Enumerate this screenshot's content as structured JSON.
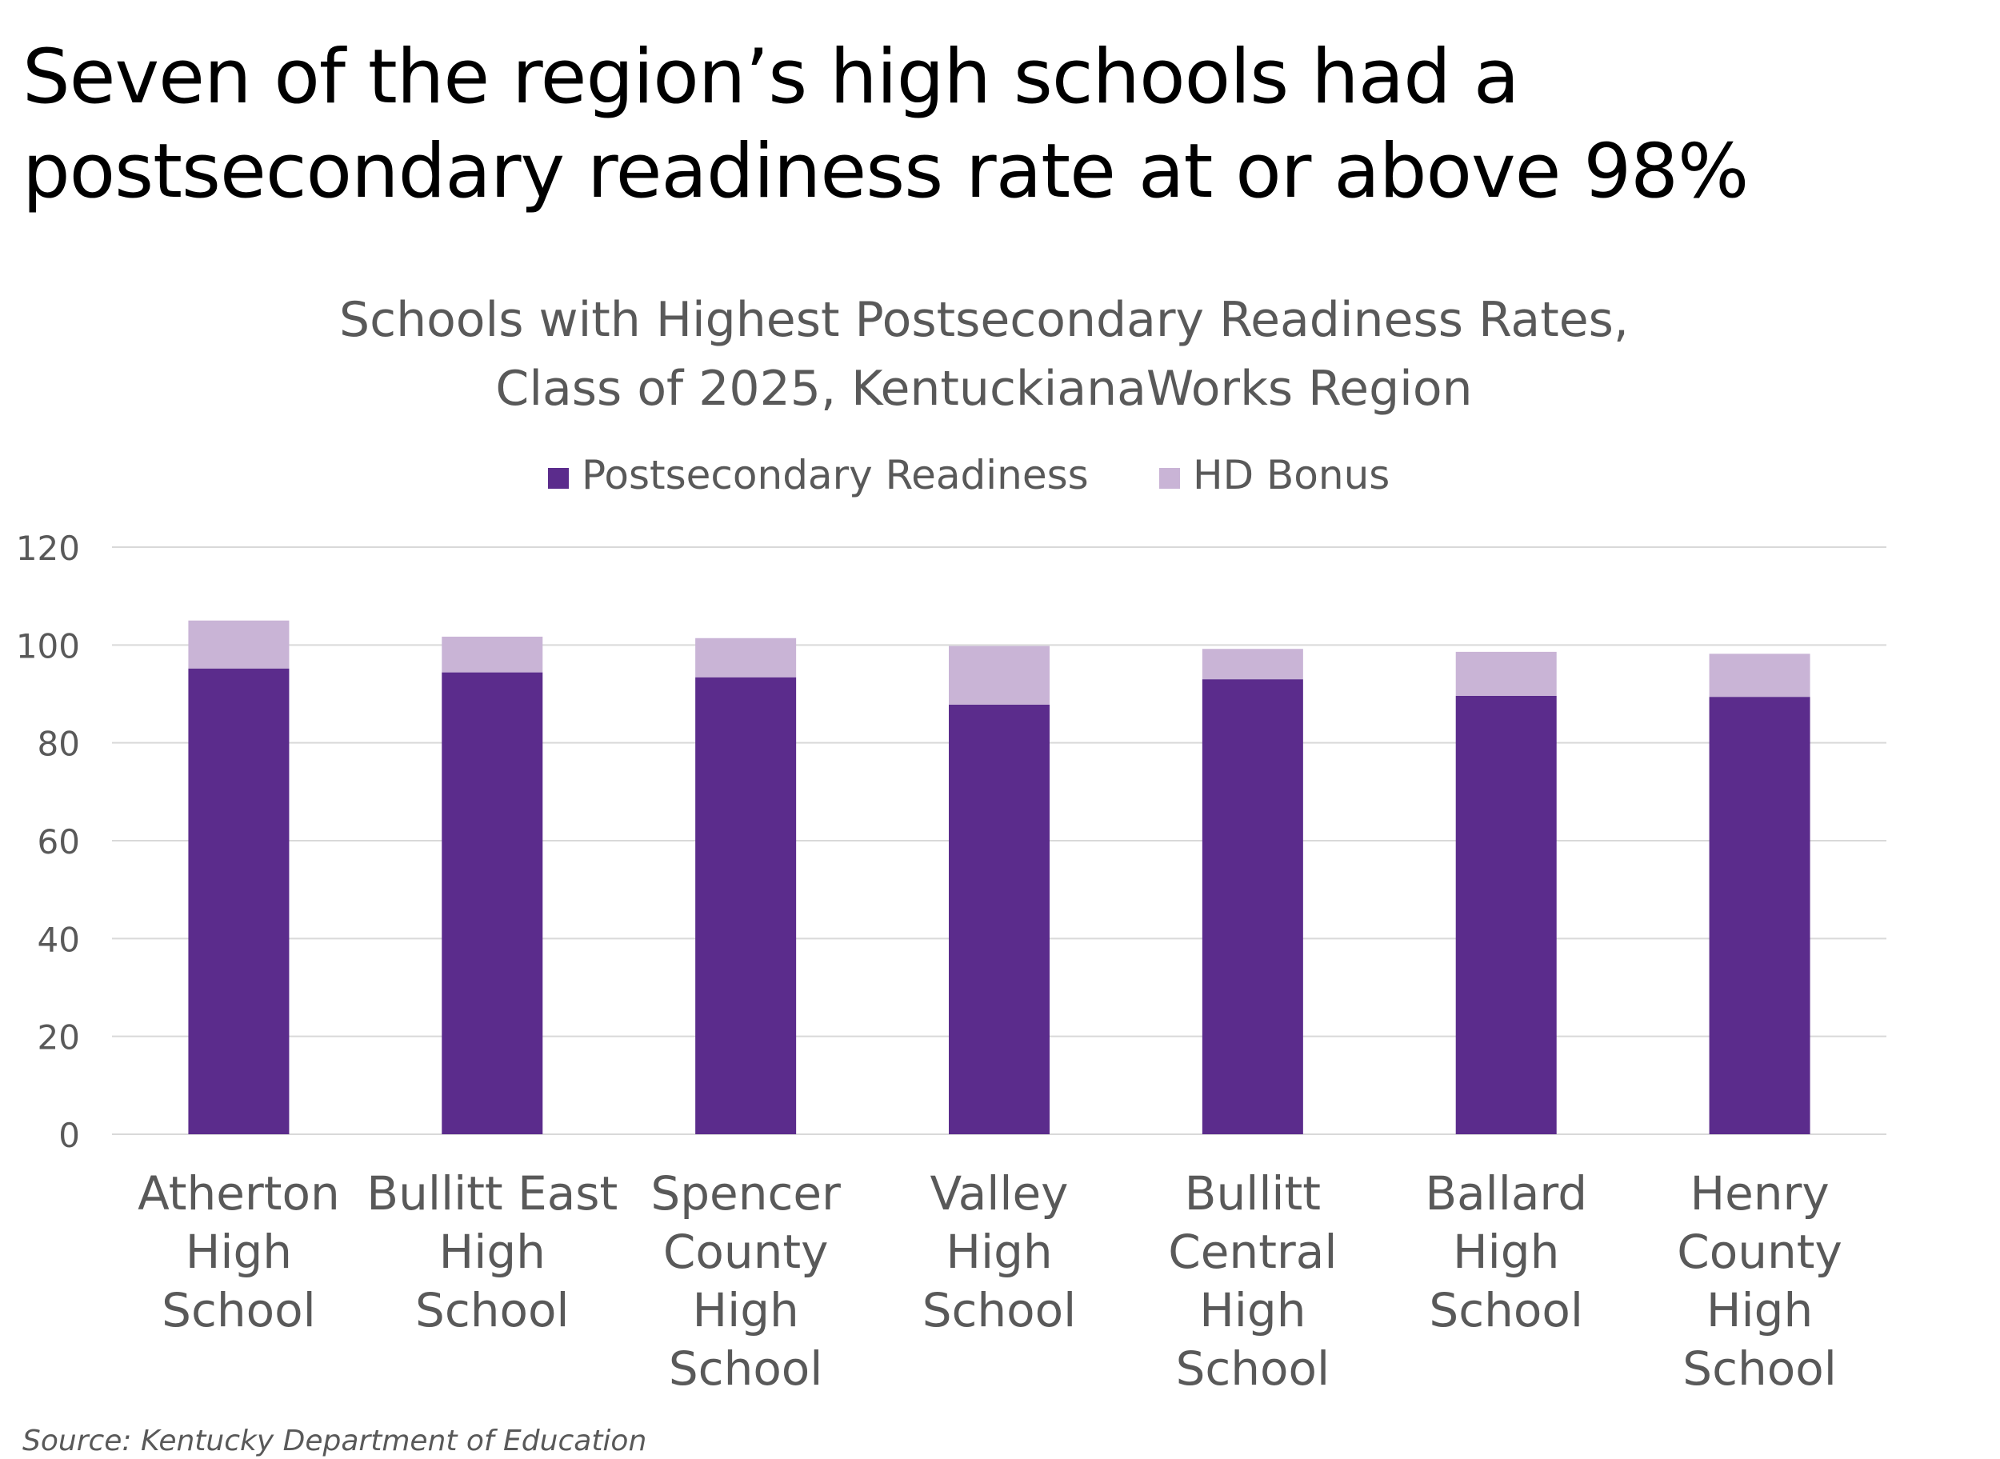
{
  "headline": {
    "line1": "Seven of the region’s high schools had a",
    "line2": "postsecondary readiness rate at or above 98%"
  },
  "source": "Source: Kentucky Department of Education",
  "colors": {
    "postsecondary_readiness": "#5B2C8C",
    "hd_bonus": "#C9B4D6",
    "grid": "#D9D9D9",
    "text": "#595959"
  },
  "chart_data": {
    "type": "bar",
    "stacked": true,
    "title": "Schools with Highest Postsecondary Readiness Rates, Class of 2025, KentuckianaWorks Region",
    "title_lines": [
      "Schools with Highest Postsecondary Readiness Rates,",
      "Class of 2025, KentuckianaWorks Region"
    ],
    "xlabel": "",
    "ylabel": "",
    "ylim": [
      0,
      120
    ],
    "yticks": [
      0,
      20,
      40,
      60,
      80,
      100,
      120
    ],
    "grid": true,
    "legend_position": "top",
    "categories": [
      "Atherton High School",
      "Bullitt East High School",
      "Spencer County High School",
      "Valley High School",
      "Bullitt Central High School",
      "Ballard High School",
      "Henry County High School"
    ],
    "category_lines": [
      [
        "Atherton",
        "High",
        "School"
      ],
      [
        "Bullitt East",
        "High",
        "School"
      ],
      [
        "Spencer",
        "County",
        "High",
        "School"
      ],
      [
        "Valley",
        "High",
        "School"
      ],
      [
        "Bullitt",
        "Central",
        "High",
        "School"
      ],
      [
        "Ballard",
        "High",
        "School"
      ],
      [
        "Henry",
        "County",
        "High",
        "School"
      ]
    ],
    "series": [
      {
        "name": "Postsecondary Readiness",
        "values": [
          95.2,
          94.4,
          93.4,
          87.8,
          93.0,
          89.6,
          89.4
        ]
      },
      {
        "name": "HD Bonus",
        "values": [
          9.8,
          7.3,
          8.0,
          12.0,
          6.2,
          9.0,
          8.8
        ]
      }
    ]
  }
}
